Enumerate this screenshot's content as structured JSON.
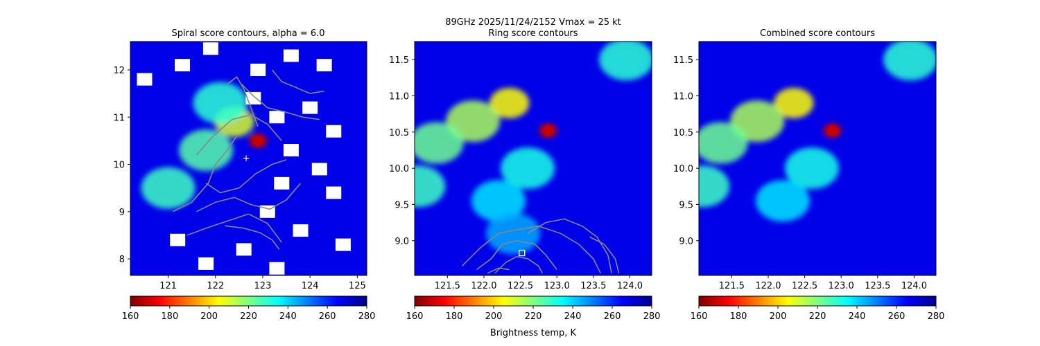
{
  "suptitle": "89GHz  2025/11/24/2152    Vmax = 25 kt",
  "colorbar_label": "Brightness temp, K",
  "colormap": [
    "#7f0000",
    "#ff0000",
    "#ff8000",
    "#ffff00",
    "#80ff80",
    "#00ffff",
    "#0080ff",
    "#0000ff",
    "#00008f"
  ],
  "chart_data": [
    {
      "type": "heatmap",
      "title": "Spiral score contours, alpha =  6.0",
      "xlim": [
        120.2,
        125.2
      ],
      "ylim": [
        7.65,
        12.6
      ],
      "xticks": [
        121,
        122,
        123,
        124,
        125
      ],
      "yticks": [
        8,
        9,
        10,
        11,
        12
      ],
      "colorbar": {
        "min": 160,
        "max": 280,
        "ticks": [
          160,
          180,
          200,
          220,
          240,
          260,
          280
        ]
      },
      "center_marker": {
        "symbol": "+",
        "x": 122.65,
        "y": 10.13
      },
      "field_features": [
        {
          "x": 122.9,
          "y": 10.5,
          "value": 168
        },
        {
          "x": 122.4,
          "y": 10.9,
          "value": 210
        },
        {
          "x": 121.8,
          "y": 10.3,
          "value": 225
        },
        {
          "x": 121.0,
          "y": 9.5,
          "value": 228
        },
        {
          "x": 122.1,
          "y": 11.3,
          "value": 230
        }
      ],
      "missing_data_regions": [
        {
          "x": 120.5,
          "y": 11.8
        },
        {
          "x": 121.3,
          "y": 12.1
        },
        {
          "x": 121.9,
          "y": 12.45
        },
        {
          "x": 122.9,
          "y": 12.0
        },
        {
          "x": 123.6,
          "y": 12.3
        },
        {
          "x": 124.3,
          "y": 12.1
        },
        {
          "x": 122.8,
          "y": 11.4
        },
        {
          "x": 123.3,
          "y": 11.0
        },
        {
          "x": 124.0,
          "y": 11.2
        },
        {
          "x": 124.5,
          "y": 10.7
        },
        {
          "x": 123.6,
          "y": 10.3
        },
        {
          "x": 124.2,
          "y": 9.9
        },
        {
          "x": 123.4,
          "y": 9.6
        },
        {
          "x": 124.5,
          "y": 9.4
        },
        {
          "x": 123.1,
          "y": 9.0
        },
        {
          "x": 123.8,
          "y": 8.6
        },
        {
          "x": 124.7,
          "y": 8.3
        },
        {
          "x": 122.6,
          "y": 8.2
        },
        {
          "x": 121.8,
          "y": 7.9
        },
        {
          "x": 121.2,
          "y": 8.4
        },
        {
          "x": 123.3,
          "y": 7.8
        }
      ],
      "contours": [
        [
          [
            122.25,
            11.7
          ],
          [
            122.45,
            11.85
          ],
          [
            122.6,
            11.6
          ],
          [
            122.75,
            11.2
          ],
          [
            122.9,
            10.8
          ]
        ],
        [
          [
            121.6,
            10.2
          ],
          [
            121.95,
            10.6
          ],
          [
            122.35,
            10.95
          ],
          [
            122.75,
            11.05
          ],
          [
            123.1,
            10.85
          ],
          [
            123.4,
            10.5
          ]
        ],
        [
          [
            122.55,
            11.7
          ],
          [
            122.8,
            11.45
          ],
          [
            123.1,
            11.2
          ],
          [
            123.5,
            11.1
          ],
          [
            123.85,
            11.0
          ],
          [
            124.2,
            10.95
          ]
        ],
        [
          [
            121.1,
            9.0
          ],
          [
            121.5,
            9.2
          ],
          [
            121.85,
            9.6
          ],
          [
            122.0,
            10.0
          ],
          [
            122.25,
            10.3
          ],
          [
            122.45,
            10.6
          ]
        ],
        [
          [
            121.8,
            9.6
          ],
          [
            122.1,
            9.4
          ],
          [
            122.5,
            9.5
          ],
          [
            122.85,
            9.8
          ],
          [
            123.2,
            10.0
          ],
          [
            123.5,
            10.1
          ]
        ],
        [
          [
            121.6,
            9.0
          ],
          [
            122.0,
            9.2
          ],
          [
            122.4,
            9.3
          ],
          [
            122.75,
            9.15
          ],
          [
            123.15,
            9.05
          ],
          [
            123.5,
            9.25
          ],
          [
            123.8,
            9.6
          ]
        ],
        [
          [
            121.4,
            8.5
          ],
          [
            121.8,
            8.65
          ],
          [
            122.25,
            8.8
          ],
          [
            122.7,
            8.95
          ],
          [
            123.1,
            8.75
          ],
          [
            123.4,
            8.35
          ]
        ],
        [
          [
            122.2,
            8.7
          ],
          [
            122.6,
            8.65
          ],
          [
            122.95,
            8.55
          ],
          [
            123.2,
            8.4
          ],
          [
            123.35,
            8.2
          ]
        ],
        [
          [
            123.2,
            12.0
          ],
          [
            123.4,
            11.75
          ],
          [
            123.65,
            11.65
          ],
          [
            124.0,
            11.5
          ],
          [
            124.3,
            11.55
          ]
        ]
      ]
    },
    {
      "type": "heatmap",
      "title": "Ring score contours",
      "xlim": [
        121.05,
        124.3
      ],
      "ylim": [
        8.52,
        11.75
      ],
      "xticks": [
        121.5,
        122.0,
        122.5,
        123.0,
        123.5,
        124.0
      ],
      "yticks": [
        9.0,
        9.5,
        10.0,
        10.5,
        11.0,
        11.5
      ],
      "colorbar": {
        "min": 160,
        "max": 280,
        "ticks": [
          160,
          180,
          200,
          220,
          240,
          260,
          280
        ]
      },
      "center_marker": {
        "symbol": "square",
        "x": 122.52,
        "y": 8.83
      },
      "field_features": [
        {
          "x": 122.88,
          "y": 10.52,
          "value": 168
        },
        {
          "x": 122.35,
          "y": 10.9,
          "value": 205
        },
        {
          "x": 121.85,
          "y": 10.65,
          "value": 215
        },
        {
          "x": 121.35,
          "y": 10.35,
          "value": 222
        },
        {
          "x": 122.6,
          "y": 10.0,
          "value": 232
        },
        {
          "x": 121.1,
          "y": 9.75,
          "value": 228
        },
        {
          "x": 122.2,
          "y": 9.55,
          "value": 238
        },
        {
          "x": 123.95,
          "y": 11.5,
          "value": 230
        },
        {
          "x": 122.4,
          "y": 9.1,
          "value": 245
        }
      ],
      "contours": [
        [
          [
            121.9,
            8.6
          ],
          [
            122.1,
            8.75
          ],
          [
            122.25,
            8.95
          ],
          [
            122.45,
            9.0
          ],
          [
            122.7,
            8.95
          ],
          [
            122.85,
            8.8
          ],
          [
            123.0,
            8.6
          ]
        ],
        [
          [
            122.15,
            8.55
          ],
          [
            122.3,
            8.7
          ],
          [
            122.45,
            8.78
          ],
          [
            122.6,
            8.75
          ],
          [
            122.75,
            8.65
          ],
          [
            122.8,
            8.55
          ]
        ],
        [
          [
            121.7,
            8.65
          ],
          [
            121.95,
            8.9
          ],
          [
            122.2,
            9.1
          ],
          [
            122.45,
            9.15
          ],
          [
            122.75,
            9.2
          ],
          [
            123.05,
            9.1
          ],
          [
            123.3,
            8.95
          ],
          [
            123.5,
            8.75
          ],
          [
            123.6,
            8.55
          ]
        ],
        [
          [
            122.6,
            9.1
          ],
          [
            122.85,
            9.25
          ],
          [
            123.1,
            9.3
          ],
          [
            123.35,
            9.2
          ],
          [
            123.55,
            9.05
          ],
          [
            123.7,
            8.8
          ],
          [
            123.75,
            8.55
          ]
        ],
        [
          [
            123.45,
            9.05
          ],
          [
            123.65,
            8.95
          ],
          [
            123.8,
            8.75
          ],
          [
            123.85,
            8.55
          ]
        ],
        [
          [
            122.05,
            8.55
          ],
          [
            122.2,
            8.62
          ],
          [
            122.35,
            8.6
          ]
        ]
      ]
    },
    {
      "type": "heatmap",
      "title": "Combined score contours",
      "xlim": [
        121.05,
        124.3
      ],
      "ylim": [
        8.52,
        11.75
      ],
      "xticks": [
        121.5,
        122.0,
        122.5,
        123.0,
        123.5,
        124.0
      ],
      "yticks": [
        9.0,
        9.5,
        10.0,
        10.5,
        11.0,
        11.5
      ],
      "colorbar": {
        "min": 160,
        "max": 280,
        "ticks": [
          160,
          180,
          200,
          220,
          240,
          260,
          280
        ]
      },
      "field_features": [
        {
          "x": 122.88,
          "y": 10.52,
          "value": 168
        },
        {
          "x": 122.35,
          "y": 10.9,
          "value": 205
        },
        {
          "x": 121.85,
          "y": 10.65,
          "value": 215
        },
        {
          "x": 121.35,
          "y": 10.35,
          "value": 222
        },
        {
          "x": 122.6,
          "y": 10.0,
          "value": 232
        },
        {
          "x": 121.1,
          "y": 9.75,
          "value": 228
        },
        {
          "x": 122.2,
          "y": 9.55,
          "value": 238
        },
        {
          "x": 123.95,
          "y": 11.5,
          "value": 230
        }
      ]
    }
  ]
}
